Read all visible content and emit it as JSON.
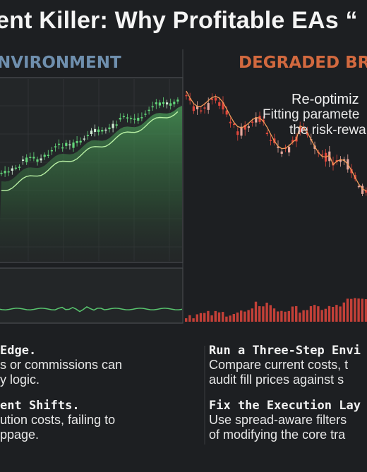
{
  "title": "ent Killer: Why Profitable EAs “",
  "panels": {
    "left_label": "NVIRONMENT",
    "right_label": "DEGRADED BRO"
  },
  "annotation": {
    "title": "Re-optimiz",
    "line1": "Fitting paramete",
    "line2": "the risk-rewa"
  },
  "bottom_left": {
    "heading1": "Edge.",
    "text1_line1": "s or commissions can",
    "text1_line2": "y logic.",
    "heading2": "ent Shifts.",
    "text2_line1": "ution costs, failing to",
    "text2_line2": "ppage."
  },
  "bottom_right": {
    "heading1": "Run a Three-Step Envi",
    "text1_line1": "Compare current costs, t",
    "text1_line2": "audit fill prices against s",
    "heading2": "Fix the Execution Lay",
    "text2_line1": "Use spread-aware filters",
    "text2_line2": "of modifying the core tra"
  },
  "colors": {
    "up_candle": "#63d67a",
    "down_candle": "#e0473c",
    "left_ma": "#b8f0a4",
    "right_ma": "#f09a5a",
    "left_label": "#6f8fae",
    "right_label": "#d2693f"
  },
  "icons": {
    "left_chart": "uptrend-candlestick-chart",
    "right_chart": "downtrend-candlestick-chart"
  }
}
